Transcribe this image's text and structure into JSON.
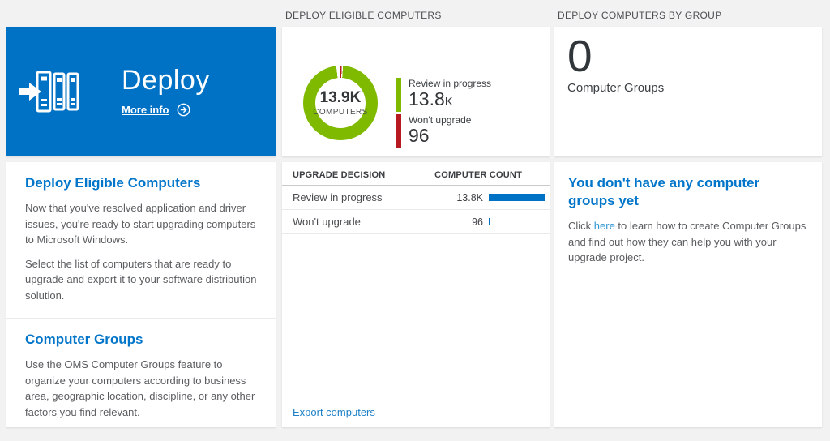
{
  "colors": {
    "tile_blue": "#0072c6",
    "heading_blue": "#0075c9",
    "donut_green": "#7fba00",
    "donut_red": "#b6191f",
    "table_bar_blue": "#0072c6",
    "page_background": "#f2f2f2"
  },
  "left": {
    "tile": {
      "title": "Deploy",
      "more_info": "More info"
    },
    "sections": [
      {
        "heading": "Deploy Eligible Computers",
        "paragraphs": [
          "Now that you've resolved application and driver issues, you're ready to start upgrading computers to Microsoft Windows.",
          "Select the list of computers that are ready to upgrade and export it to your software distribution solution."
        ]
      },
      {
        "heading": "Computer Groups",
        "paragraphs": [
          "Use the OMS Computer Groups feature to organize your computers according to business area, geographic location, discipline, or any other factors you find relevant."
        ]
      }
    ]
  },
  "middle": {
    "header": "DEPLOY ELIGIBLE COMPUTERS",
    "donut": {
      "total": "13.9K",
      "total_label": "COMPUTERS",
      "legend": [
        {
          "label": "Review in progress",
          "value": "13.8",
          "suffix": "K",
          "color": "#7fba00"
        },
        {
          "label": "Won't upgrade",
          "value": "96",
          "suffix": "",
          "color": "#b6191f"
        }
      ]
    },
    "table": {
      "headers": {
        "decision": "UPGRADE DECISION",
        "count": "COMPUTER COUNT"
      },
      "rows": [
        {
          "decision": "Review in progress",
          "count": "13.8K",
          "bar_pct": 100
        },
        {
          "decision": "Won't upgrade",
          "count": "96",
          "bar_pct": 3
        }
      ]
    },
    "export_link": "Export computers"
  },
  "right": {
    "header": "DEPLOY COMPUTERS BY GROUP",
    "count": "0",
    "count_label": "Computer Groups",
    "empty_state": {
      "heading": "You don't have any computer groups yet",
      "text_before": "Click ",
      "link": "here",
      "text_after": " to learn how to create Computer Groups and find out how they can help you with your upgrade project."
    }
  },
  "chart_data": [
    {
      "type": "pie",
      "subtype": "donut",
      "title": "DEPLOY ELIGIBLE COMPUTERS",
      "categories": [
        "Review in progress",
        "Won't upgrade"
      ],
      "values": [
        13800,
        96
      ],
      "display_values": [
        "13.8K",
        "96"
      ],
      "colors": [
        "#7fba00",
        "#b6191f"
      ],
      "center_total": "13.9K",
      "center_label": "COMPUTERS",
      "legend_position": "right"
    },
    {
      "type": "bar",
      "orientation": "horizontal",
      "title": "Upgrade decision counts",
      "categories": [
        "Review in progress",
        "Won't upgrade"
      ],
      "values": [
        13800,
        96
      ],
      "display_values": [
        "13.8K",
        "96"
      ],
      "color": "#0072c6",
      "xlabel": "COMPUTER COUNT",
      "ylabel": "UPGRADE DECISION"
    }
  ]
}
